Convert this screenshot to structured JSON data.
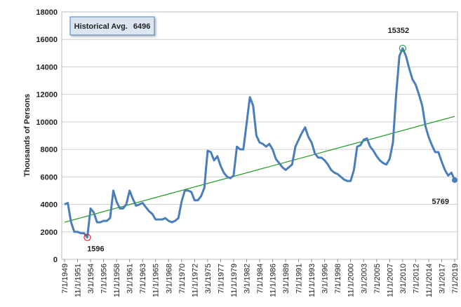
{
  "chart_data": {
    "type": "line",
    "y_label": "Thousands  of Persons",
    "average": {
      "label": "Historical Avg.",
      "value": 6496
    },
    "categories": [
      "7/1/1949",
      null,
      null,
      null,
      "11/1/1951",
      null,
      null,
      null,
      "3/1/1954",
      null,
      null,
      null,
      "7/1/1956",
      null,
      null,
      null,
      "11/1/1958",
      null,
      null,
      null,
      "3/1/1961",
      null,
      null,
      null,
      "7/1/1963",
      null,
      null,
      null,
      "11/1/1965",
      null,
      null,
      null,
      "3/1/1968",
      null,
      null,
      null,
      "7/1/1970",
      null,
      null,
      null,
      "11/1/1972",
      null,
      null,
      null,
      "3/1/1975",
      null,
      null,
      null,
      "7/1/1977",
      null,
      null,
      null,
      "11/1/1979",
      null,
      null,
      null,
      "3/1/1982",
      null,
      null,
      null,
      "7/1/1984",
      null,
      null,
      null,
      "11/1/1986",
      null,
      null,
      null,
      "3/1/1989",
      null,
      null,
      null,
      "7/1/1991",
      null,
      null,
      null,
      "11/1/1993",
      null,
      null,
      null,
      "3/1/1996",
      null,
      null,
      null,
      "7/1/1998",
      null,
      null,
      null,
      "11/1/2000",
      null,
      null,
      null,
      "3/1/2003",
      null,
      null,
      null,
      "7/1/2005",
      null,
      null,
      null,
      "11/1/2007",
      null,
      null,
      null,
      "3/1/2010",
      null,
      null,
      null,
      "7/1/2012",
      null,
      null,
      null,
      "11/1/2014",
      null,
      null,
      null,
      "3/1/2017",
      null,
      null,
      null,
      "7/1/2019"
    ],
    "series": [
      {
        "color": "#4a7ebb",
        "values": [
          4000,
          4100,
          2700,
          2000,
          2000,
          1900,
          1900,
          1596,
          3700,
          3400,
          2700,
          2700,
          2800,
          2800,
          3000,
          5000,
          4200,
          3700,
          3700,
          4000,
          5000,
          4400,
          3900,
          4000,
          4100,
          3800,
          3500,
          3300,
          2900,
          2900,
          2900,
          3000,
          2800,
          2700,
          2800,
          3000,
          4200,
          5000,
          5000,
          4900,
          4300,
          4300,
          4600,
          5200,
          7900,
          7800,
          7200,
          7500,
          6800,
          6300,
          6000,
          5900,
          6100,
          8200,
          8000,
          8000,
          9900,
          11800,
          11200,
          9000,
          8500,
          8400,
          8200,
          8400,
          8000,
          7300,
          7000,
          6700,
          6500,
          6700,
          6900,
          8200,
          8700,
          9200,
          9600,
          8900,
          8500,
          7700,
          7400,
          7400,
          7200,
          6900,
          6500,
          6300,
          6200,
          6000,
          5800,
          5700,
          5700,
          6500,
          8200,
          8300,
          8700,
          8800,
          8200,
          7900,
          7500,
          7200,
          7000,
          6900,
          7300,
          8500,
          12000,
          14800,
          15352,
          14800,
          13900,
          13100,
          12700,
          12000,
          11200,
          9700,
          8900,
          8300,
          7800,
          7800,
          7100,
          6500,
          6100,
          6300,
          5769
        ]
      }
    ],
    "trend": {
      "color": "#1a9a1a",
      "values": [
        2700,
        10400
      ]
    },
    "max_color": "#21a04a",
    "min_color": "#e02020",
    "last_color": "#4a7ebb",
    "ylim": [
      0,
      18000
    ],
    "yticks": [
      0,
      2000,
      4000,
      6000,
      8000,
      10000,
      12000,
      14000,
      16000,
      18000
    ],
    "grid": true
  }
}
